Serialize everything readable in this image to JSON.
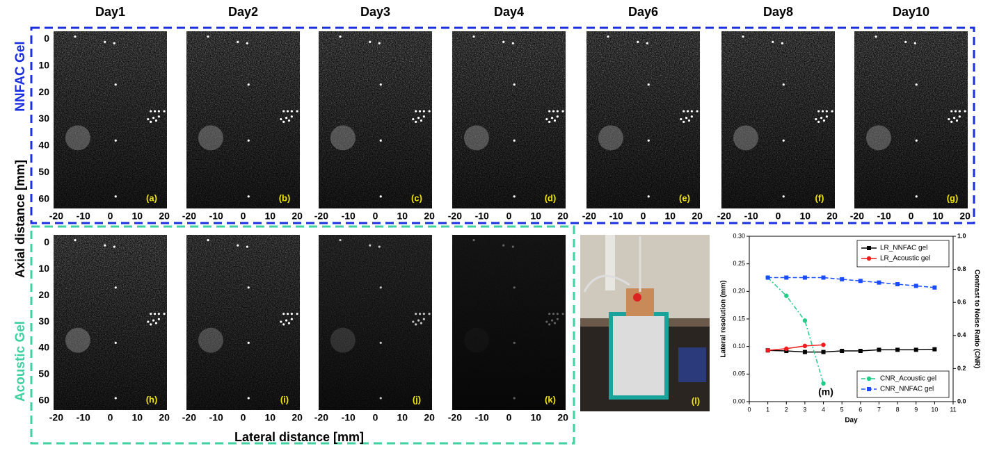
{
  "figure": {
    "day_titles": [
      "Day1",
      "Day2",
      "Day3",
      "Day4",
      "Day6",
      "Day8",
      "Day10"
    ],
    "row_labels": [
      "NNFAC Gel",
      "Acoustic Gel"
    ],
    "y_axis_label": "Axial distance [mm]",
    "x_axis_label": "Lateral distance [mm]",
    "panel_labels": [
      "(a)",
      "(b)",
      "(c)",
      "(d)",
      "(e)",
      "(f)",
      "(g)",
      "(h)",
      "(i)",
      "(j)",
      "(k)",
      "(l)"
    ],
    "image_axes": {
      "xlim": [
        -21,
        21
      ],
      "xticks": [
        -20,
        -10,
        0,
        10,
        20
      ],
      "ylim": [
        -3,
        63.5
      ],
      "yticks": [
        0,
        10,
        20,
        30,
        40,
        50,
        60
      ]
    }
  },
  "chart_data": {
    "type": "line",
    "label": "(m)",
    "x_label": "Day",
    "y_label": "Lateral resolution (mm)",
    "y2_label": "Contrast to Noise Ratio (CNR)",
    "x": [
      1,
      2,
      3,
      4,
      5,
      6,
      7,
      8,
      9,
      10
    ],
    "xlim": [
      0,
      11
    ],
    "xticks": [
      0,
      1,
      2,
      3,
      4,
      5,
      6,
      7,
      8,
      9,
      10,
      11
    ],
    "ylim": [
      0,
      0.3
    ],
    "yticks": [
      {
        "value": 0,
        "label": "0.00"
      },
      {
        "value": 0.05,
        "label": "0.05"
      },
      {
        "value": 0.1,
        "label": "0.10"
      },
      {
        "value": 0.15,
        "label": "0.15"
      },
      {
        "value": 0.2,
        "label": "0.20"
      },
      {
        "value": 0.25,
        "label": "0.25"
      },
      {
        "value": 0.3,
        "label": "0.30"
      }
    ],
    "y2lim": [
      0,
      1
    ],
    "y2ticks": [
      {
        "value": 0,
        "label": "0.0"
      },
      0.2,
      0.4,
      0.6,
      0.8,
      {
        "value": 1,
        "label": "1.0"
      }
    ],
    "series": [
      {
        "name": "LR_NNFAC gel",
        "color": "#000000",
        "marker": "square",
        "dash": "solid",
        "legend": "upper right",
        "values": [
          0.093,
          0.092,
          0.09,
          0.09,
          0.092,
          0.092,
          0.094,
          0.094,
          0.094,
          0.095
        ]
      },
      {
        "name": "LR_Acoustic gel",
        "color": "#ee1c1c",
        "marker": "circle",
        "dash": "solid",
        "legend": "upper right",
        "values": [
          0.093,
          0.096,
          0.101,
          0.103,
          null,
          null,
          null,
          null,
          null,
          null
        ]
      },
      {
        "name": "CNR_Acoustic gel",
        "color": "#22cc88",
        "marker": "circle",
        "dash": "dashdot",
        "legend": "lower right",
        "axis": "y2",
        "values": [
          0.75,
          0.64,
          0.49,
          0.11,
          null,
          null,
          null,
          null,
          null,
          null
        ]
      },
      {
        "name": "CNR_NNFAC gel",
        "color": "#1a4dff",
        "marker": "square",
        "dash": "dash",
        "legend": "lower right",
        "axis": "y2",
        "values": [
          0.75,
          0.75,
          0.75,
          0.75,
          0.74,
          0.73,
          0.72,
          0.71,
          0.7,
          0.69
        ]
      }
    ]
  }
}
